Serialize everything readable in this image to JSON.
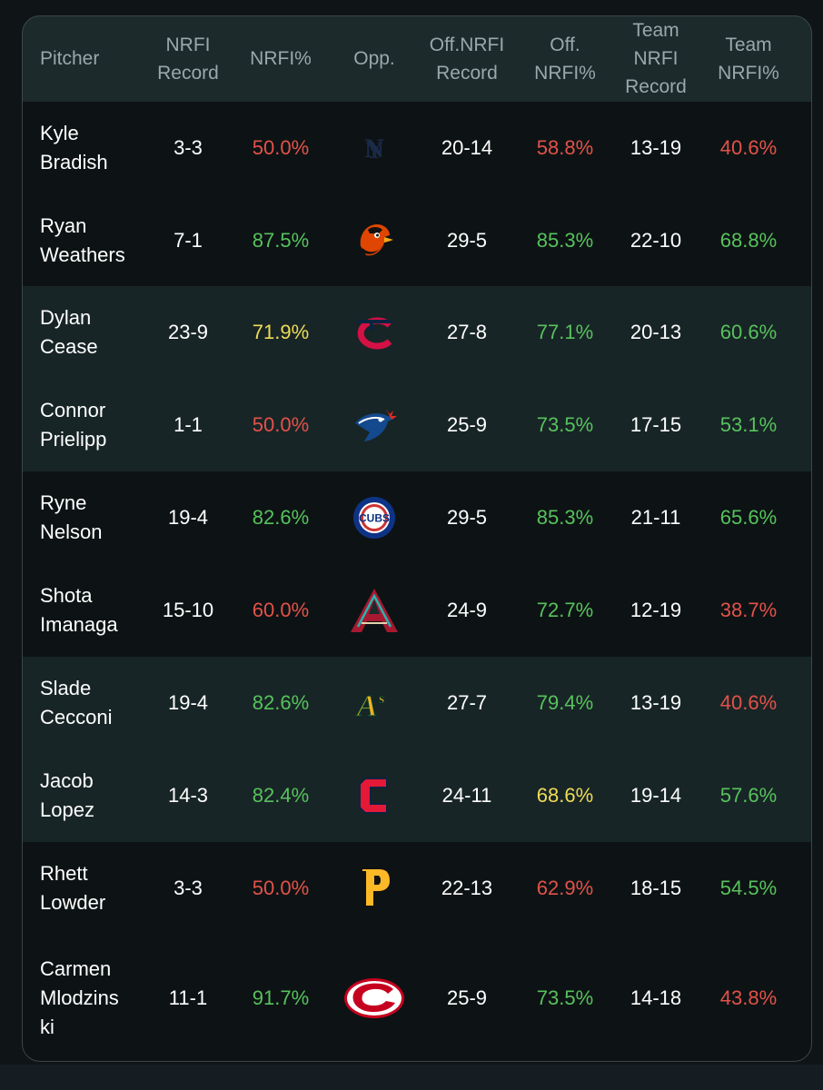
{
  "columns": [
    "Pitcher",
    "NRFI\nRecord",
    "NRFI%",
    "Opp.",
    "Off.NRFI\nRecord",
    "Off.\nNRFI%",
    "Team\nNRFI\nRecord",
    "Team\nNRFI%"
  ],
  "colors": {
    "green": "#57c25d",
    "red": "#e2524a",
    "yellow": "#eedc57",
    "white": "#ffffff",
    "header_text": "#9aa7ab"
  },
  "rows": [
    {
      "pitcher": "Kyle\nBradish",
      "nrfi_record": "3-3",
      "nrfi_pct": "50.0%",
      "nrfi_pct_color": "red",
      "opp_icon": "yankees-logo",
      "off_record": "20-14",
      "off_pct": "58.8%",
      "off_pct_color": "red",
      "team_record": "13-19",
      "team_pct": "40.6%",
      "team_pct_color": "red"
    },
    {
      "pitcher": "Ryan\nWeathers",
      "nrfi_record": "7-1",
      "nrfi_pct": "87.5%",
      "nrfi_pct_color": "green",
      "opp_icon": "orioles-logo",
      "off_record": "29-5",
      "off_pct": "85.3%",
      "off_pct_color": "green",
      "team_record": "22-10",
      "team_pct": "68.8%",
      "team_pct_color": "green"
    },
    {
      "pitcher": "Dylan\nCease",
      "nrfi_record": "23-9",
      "nrfi_pct": "71.9%",
      "nrfi_pct_color": "yellow",
      "opp_icon": "twins-logo",
      "off_record": "27-8",
      "off_pct": "77.1%",
      "off_pct_color": "green",
      "team_record": "20-13",
      "team_pct": "60.6%",
      "team_pct_color": "green"
    },
    {
      "pitcher": "Connor\nPrielipp",
      "nrfi_record": "1-1",
      "nrfi_pct": "50.0%",
      "nrfi_pct_color": "red",
      "opp_icon": "blue-jays-logo",
      "off_record": "25-9",
      "off_pct": "73.5%",
      "off_pct_color": "green",
      "team_record": "17-15",
      "team_pct": "53.1%",
      "team_pct_color": "green"
    },
    {
      "pitcher": "Ryne\nNelson",
      "nrfi_record": "19-4",
      "nrfi_pct": "82.6%",
      "nrfi_pct_color": "green",
      "opp_icon": "cubs-logo",
      "off_record": "29-5",
      "off_pct": "85.3%",
      "off_pct_color": "green",
      "team_record": "21-11",
      "team_pct": "65.6%",
      "team_pct_color": "green"
    },
    {
      "pitcher": "Shota\nImanaga",
      "nrfi_record": "15-10",
      "nrfi_pct": "60.0%",
      "nrfi_pct_color": "red",
      "opp_icon": "diamondbacks-logo",
      "off_record": "24-9",
      "off_pct": "72.7%",
      "off_pct_color": "green",
      "team_record": "12-19",
      "team_pct": "38.7%",
      "team_pct_color": "red"
    },
    {
      "pitcher": "Slade\nCecconi",
      "nrfi_record": "19-4",
      "nrfi_pct": "82.6%",
      "nrfi_pct_color": "green",
      "opp_icon": "athletics-logo",
      "off_record": "27-7",
      "off_pct": "79.4%",
      "off_pct_color": "green",
      "team_record": "13-19",
      "team_pct": "40.6%",
      "team_pct_color": "red"
    },
    {
      "pitcher": "Jacob\nLopez",
      "nrfi_record": "14-3",
      "nrfi_pct": "82.4%",
      "nrfi_pct_color": "green",
      "opp_icon": "guardians-logo",
      "off_record": "24-11",
      "off_pct": "68.6%",
      "off_pct_color": "yellow",
      "team_record": "19-14",
      "team_pct": "57.6%",
      "team_pct_color": "green"
    },
    {
      "pitcher": "Rhett\nLowder",
      "nrfi_record": "3-3",
      "nrfi_pct": "50.0%",
      "nrfi_pct_color": "red",
      "opp_icon": "pirates-logo",
      "off_record": "22-13",
      "off_pct": "62.9%",
      "off_pct_color": "red",
      "team_record": "18-15",
      "team_pct": "54.5%",
      "team_pct_color": "green"
    },
    {
      "pitcher": "Carmen\nMlodzins\nki",
      "nrfi_record": "11-1",
      "nrfi_pct": "91.7%",
      "nrfi_pct_color": "green",
      "opp_icon": "reds-logo",
      "off_record": "25-9",
      "off_pct": "73.5%",
      "off_pct_color": "green",
      "team_record": "14-18",
      "team_pct": "43.8%",
      "team_pct_color": "red"
    }
  ],
  "logo_text": {
    "cubs": "CUBS"
  }
}
